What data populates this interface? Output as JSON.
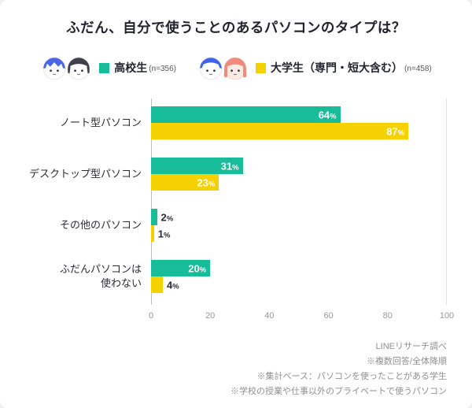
{
  "title": "ふだん、自分で使うことのあるパソコンのタイプは？",
  "legend": [
    {
      "label": "高校生",
      "n": "(n=356)",
      "color": "#17bd98"
    },
    {
      "label": "大学生（専門・短大含む）",
      "n": "(n=458)",
      "color": "#f6d100"
    }
  ],
  "chart_data": {
    "type": "bar",
    "orientation": "horizontal",
    "title": "ふだん、自分で使うことのあるパソコンのタイプは？",
    "categories": [
      "ノート型パソコン",
      "デスクトップ型パソコン",
      "その他のパソコン",
      "ふだんパソコンは使わない"
    ],
    "category_labels": [
      "ノート型パソコン",
      "デスクトップ型パソコン",
      "その他のパソコン",
      "ふだんパソコンは\n使わない"
    ],
    "series": [
      {
        "key": "highschool",
        "name": "高校生",
        "n": 356,
        "color": "#17bd98",
        "values": [
          64,
          31,
          2,
          20
        ]
      },
      {
        "key": "university",
        "name": "大学生（専門・短大含む）",
        "n": 458,
        "color": "#f6d100",
        "values": [
          87,
          23,
          1,
          4
        ]
      }
    ],
    "xlim": [
      0,
      100
    ],
    "x_ticks": [
      0,
      20,
      40,
      60,
      80,
      100
    ],
    "value_suffix": "%",
    "legend_position": "top",
    "grid": "extent-lines-only"
  },
  "footer": {
    "lines": [
      "LINEリサーチ調べ",
      "※複数回答/全体降順",
      "※集計ベース：パソコンを使ったことがある学生",
      "※学校の授業や仕事以外のプライベートで使うパソコン"
    ]
  }
}
